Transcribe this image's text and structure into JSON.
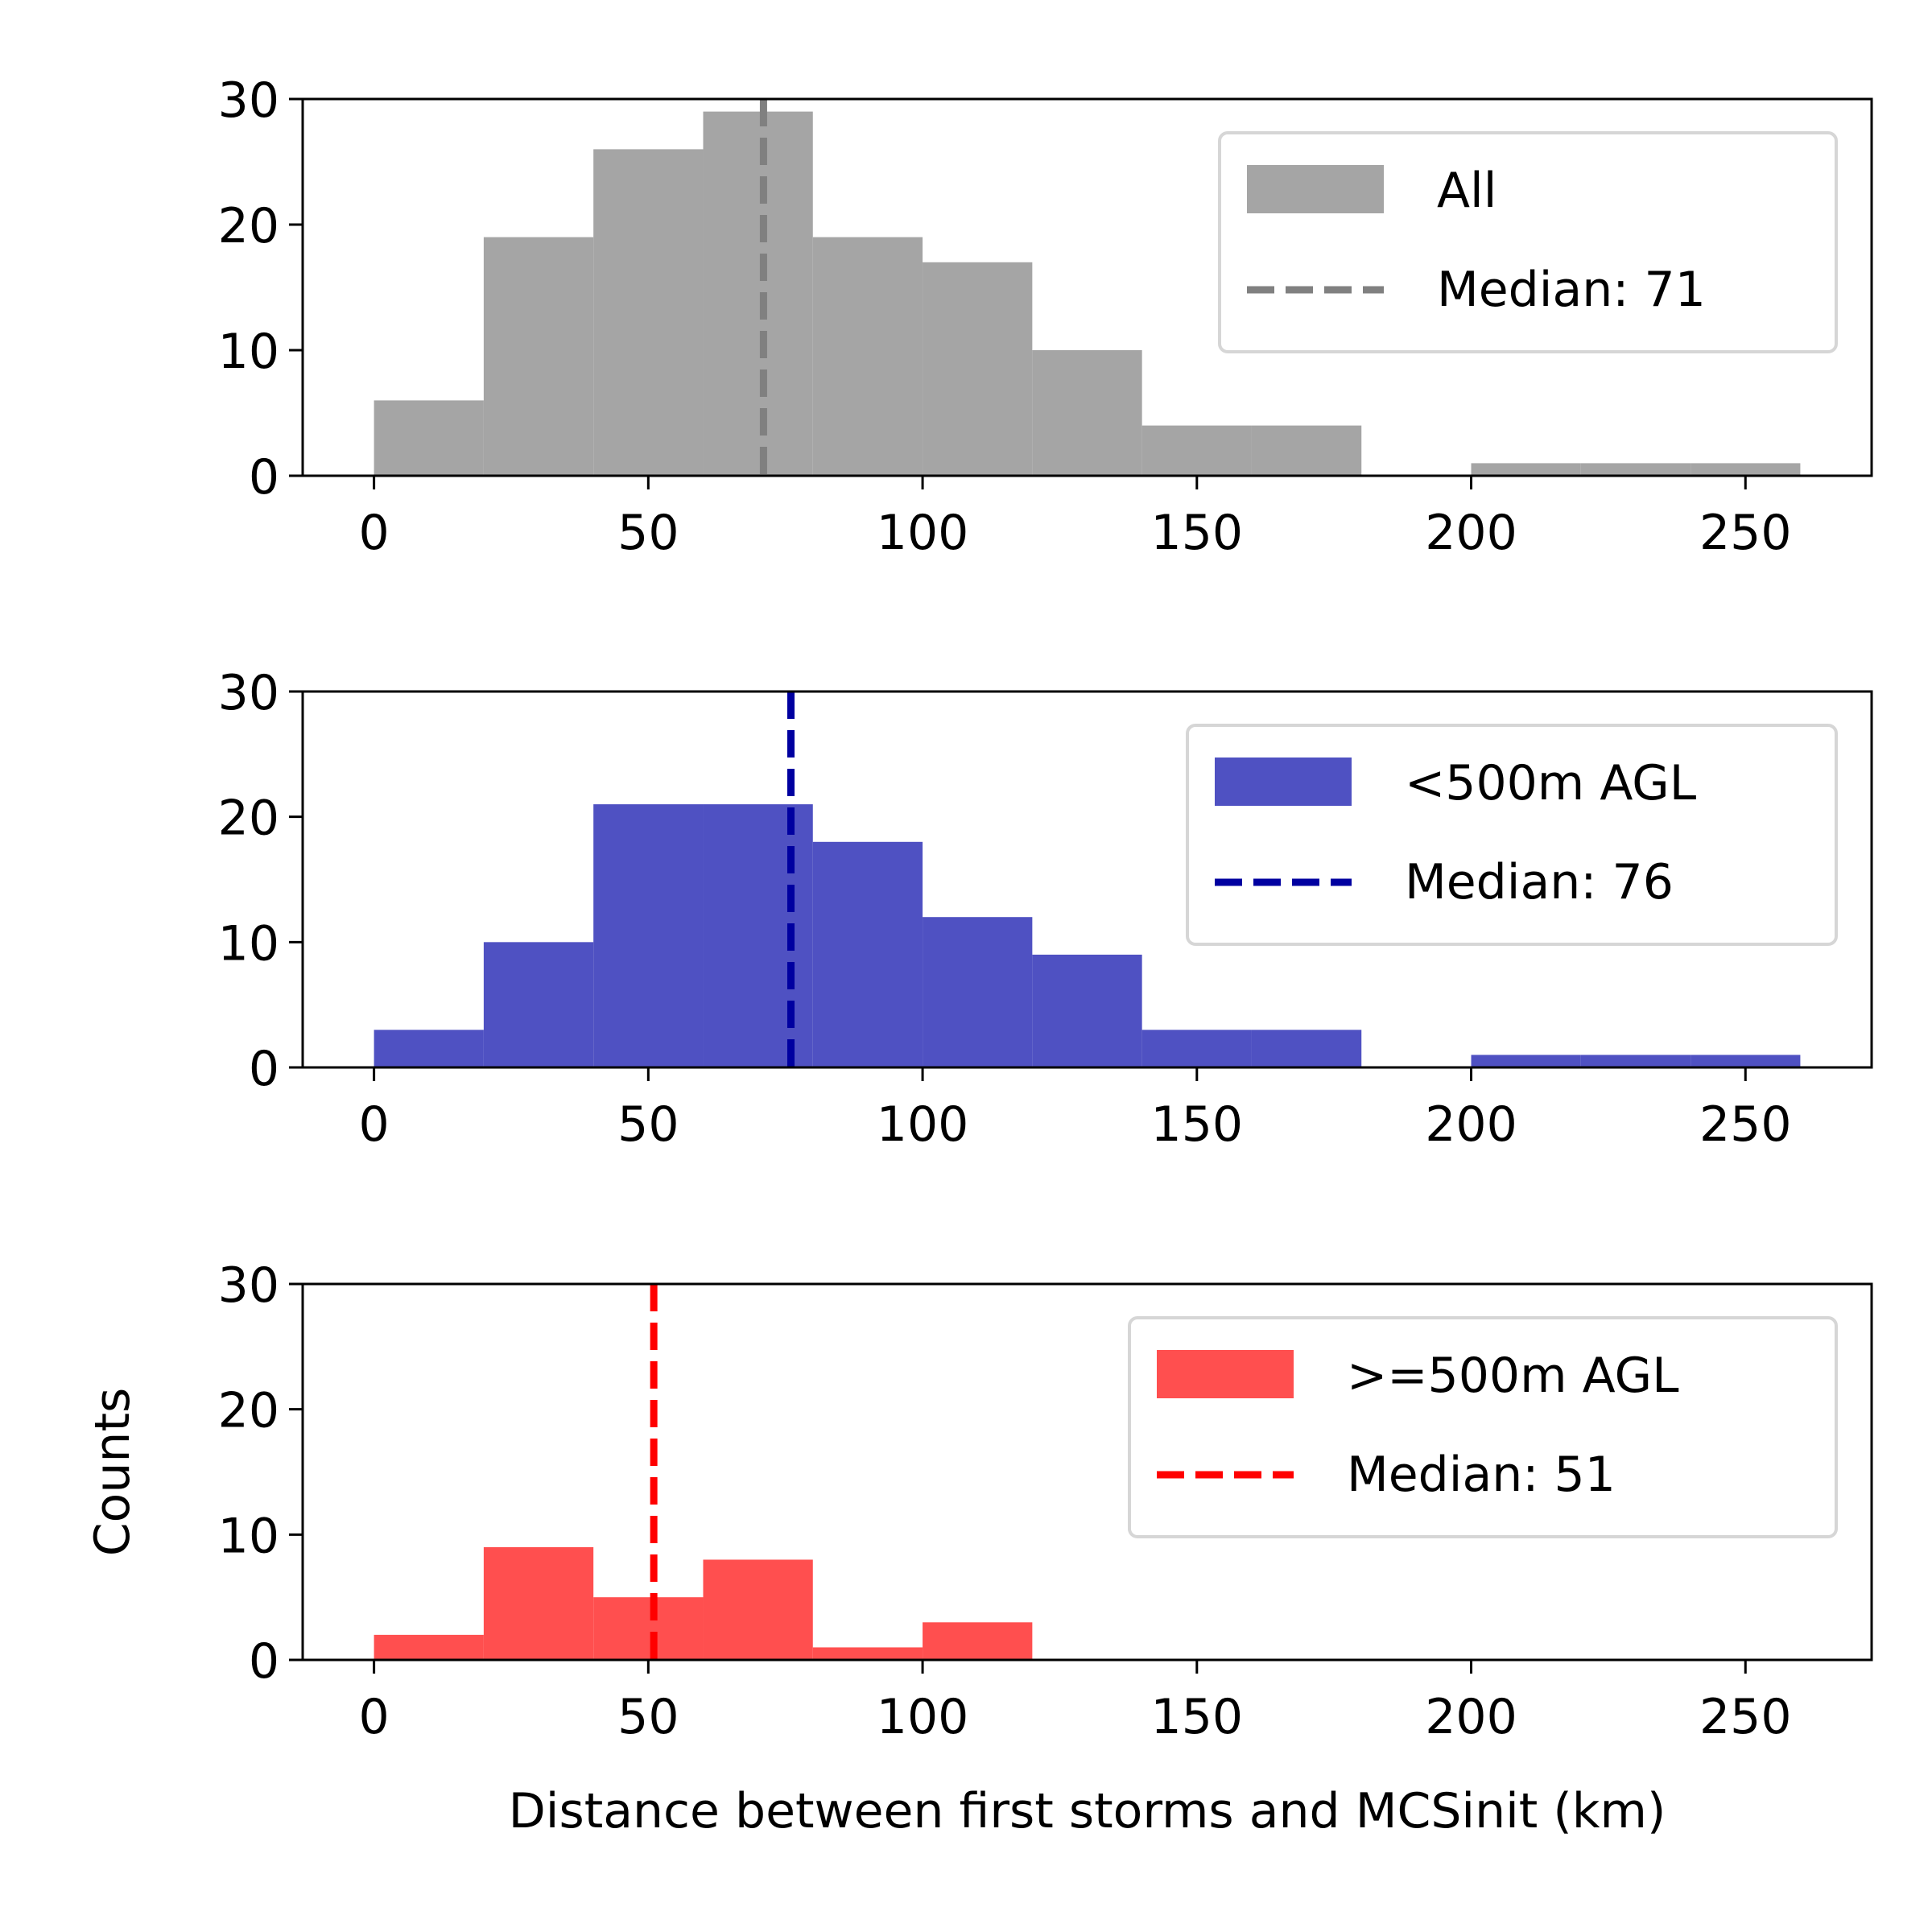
{
  "chart_data": [
    {
      "type": "bar",
      "subtype": "histogram",
      "bin_edges": [
        0,
        20,
        40,
        60,
        80,
        100,
        120,
        140,
        160,
        180,
        200,
        220,
        240,
        260
      ],
      "values": [
        6,
        19,
        26,
        29,
        19,
        17,
        10,
        4,
        4,
        0,
        1,
        1,
        1
      ],
      "series_name": "All",
      "median": 71,
      "median_label": "Median: 71",
      "color": "#a5a5a5",
      "median_color": "#808080",
      "xlim": [
        -13,
        273
      ],
      "ylim": [
        0,
        30
      ],
      "xticks": [
        0,
        50,
        100,
        150,
        200,
        250
      ],
      "yticks": [
        0,
        10,
        20,
        30
      ],
      "xlabel": "",
      "ylabel": "",
      "legend_position": "top-right"
    },
    {
      "type": "bar",
      "subtype": "histogram",
      "bin_edges": [
        0,
        20,
        40,
        60,
        80,
        100,
        120,
        140,
        160,
        180,
        200,
        220,
        240,
        260
      ],
      "values": [
        3,
        10,
        21,
        21,
        18,
        12,
        9,
        3,
        3,
        0,
        1,
        1,
        1
      ],
      "series_name": "<500m AGL",
      "median": 76,
      "median_label": "Median: 76",
      "color": "#4f51c2",
      "median_color": "#0000a0",
      "xlim": [
        -13,
        273
      ],
      "ylim": [
        0,
        30
      ],
      "xticks": [
        0,
        50,
        100,
        150,
        200,
        250
      ],
      "yticks": [
        0,
        10,
        20,
        30
      ],
      "xlabel": "",
      "ylabel": "",
      "legend_position": "top-right"
    },
    {
      "type": "bar",
      "subtype": "histogram",
      "bin_edges": [
        0,
        20,
        40,
        60,
        80,
        100,
        120
      ],
      "values": [
        2,
        9,
        5,
        8,
        1,
        3
      ],
      "series_name": ">=500m AGL",
      "median": 51,
      "median_label": "Median: 51",
      "color": "#ff4f4f",
      "median_color": "#ff0000",
      "xlim": [
        -13,
        273
      ],
      "ylim": [
        0,
        30
      ],
      "xticks": [
        0,
        50,
        100,
        150,
        200,
        250
      ],
      "yticks": [
        0,
        10,
        20,
        30
      ],
      "xlabel": "Distance between first storms and MCSinit (km)",
      "ylabel": "Counts",
      "legend_position": "top-right"
    }
  ]
}
